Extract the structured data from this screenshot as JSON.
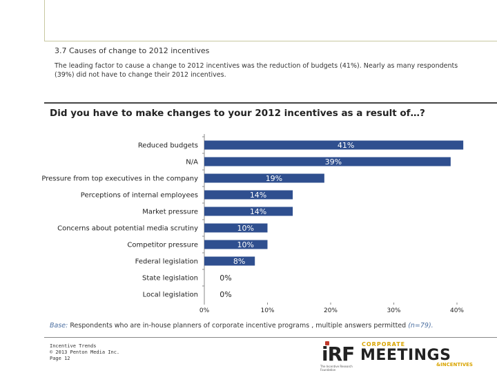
{
  "section": {
    "title": "3.7 Causes of change to 2012 incentives",
    "description": "The leading factor to cause a change to 2012 incentives was the reduction of budgets (41%).  Nearly as many respondents (39%) did not have to change their 2012 incentives."
  },
  "colors": {
    "bar": "#2f4f8f",
    "axis": "#888888",
    "label_text": "#ffffff"
  },
  "chart_data": {
    "type": "bar",
    "orientation": "horizontal",
    "title": "Did you have to make changes to your 2012 incentives as a result of…?",
    "categories": [
      "Reduced budgets",
      "N/A",
      "Pressure from top executives in the company",
      "Perceptions of internal employees",
      "Market pressure",
      "Concerns about potential media scrutiny",
      "Competitor pressure",
      "Federal legislation",
      "State legislation",
      "Local legislation"
    ],
    "values": [
      41,
      39,
      19,
      14,
      14,
      10,
      10,
      8,
      0,
      0
    ],
    "value_labels": [
      "41%",
      "39%",
      "19%",
      "14%",
      "14%",
      "10%",
      "10%",
      "8%",
      "0%",
      "0%"
    ],
    "xlim": [
      0,
      40
    ],
    "xticks": [
      0,
      10,
      20,
      30,
      40
    ],
    "xtick_labels": [
      "0%",
      "10%",
      "20%",
      "30%",
      "40%"
    ],
    "xlabel": "",
    "ylabel": ""
  },
  "note": {
    "label": "Base:",
    "text": " Respondents who are in-house planners of corporate incentive programs , multiple answers permitted ",
    "n": "(n=79)."
  },
  "footer": {
    "line1": "Incentive Trends",
    "line2": "© 2013 Penton Media Inc.",
    "line3": "Page 12"
  },
  "logos": {
    "irf": "iRF",
    "irf_sub": "The Incentive Research Foundation",
    "corporate": "CORPORATE",
    "meetings": "MEETINGS",
    "incentives": "&INCENTIVES"
  }
}
